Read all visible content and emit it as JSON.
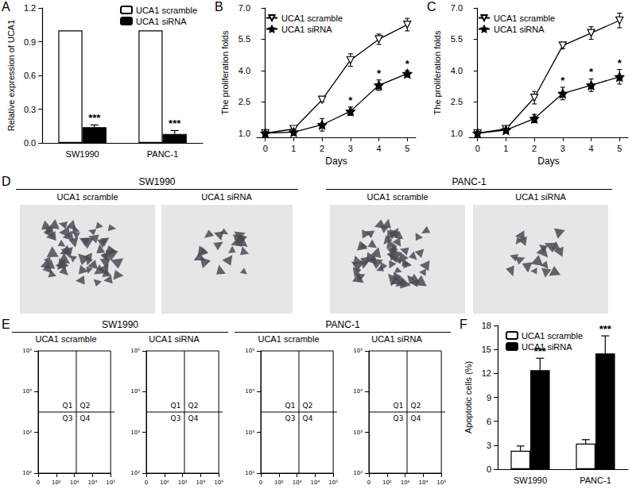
{
  "chart_data": [
    {
      "panel": "A",
      "type": "bar",
      "y_label": "Relative expression of UCA1",
      "categories": [
        "SW1990",
        "PANC-1"
      ],
      "series": [
        {
          "name": "UCA1 scramble",
          "color": "#ffffff",
          "values": [
            1,
            1
          ]
        },
        {
          "name": "UCA1 siRNA",
          "color": "#000000",
          "values": [
            0.14,
            0.08
          ],
          "errors": [
            0.02,
            0.03
          ],
          "annotations": [
            "***",
            "***"
          ]
        }
      ],
      "ylim": [
        0,
        1.2
      ],
      "yticks": [
        {
          "value": 0,
          "label": "0.0"
        },
        0.3,
        0.6,
        0.9,
        1.2
      ],
      "legend": "top-right",
      "grid": false
    },
    {
      "panel": "B",
      "type": "line",
      "x_label": "Days",
      "y_label": "The proliferation folds",
      "x": [
        0,
        1,
        2,
        3,
        4,
        5
      ],
      "series": [
        {
          "name": "UCA1 scramble",
          "color": "#000000",
          "marker": "triangle-down-open",
          "values": [
            1.0,
            1.2,
            2.6,
            4.5,
            5.5,
            6.2
          ],
          "errors": [
            0.05,
            0.1,
            0.1,
            0.3,
            0.25,
            0.3
          ]
        },
        {
          "name": "UCA1 siRNA",
          "color": "#000000",
          "marker": "star",
          "values": [
            1.0,
            1.05,
            1.4,
            2.05,
            3.3,
            3.85
          ],
          "errors": [
            0.05,
            0.15,
            0.3,
            0.2,
            0.25,
            0.15
          ],
          "annotations": [
            null,
            null,
            null,
            "*",
            "*",
            "*"
          ]
        }
      ],
      "xlim": [
        -0.3,
        5.3
      ],
      "xticks": [
        0,
        1,
        2,
        3,
        4,
        5
      ],
      "ylim": [
        0.8,
        7.0
      ],
      "yticks": [
        {
          "value": 1,
          "label": "1.0"
        },
        2.5,
        {
          "value": 4,
          "label": "4.0"
        },
        5.5,
        {
          "value": 7,
          "label": "7.0"
        }
      ],
      "legend": "top-left",
      "grid": false
    },
    {
      "panel": "C",
      "type": "line",
      "x_label": "Days",
      "y_label": "The proliferation folds",
      "x": [
        0,
        1,
        2,
        3,
        4,
        5
      ],
      "series": [
        {
          "name": "UCA1 scramble",
          "color": "#000000",
          "marker": "triangle-down-open",
          "values": [
            1.0,
            1.2,
            2.7,
            5.2,
            5.8,
            6.4
          ],
          "errors": [
            0.05,
            0.1,
            0.3,
            0.15,
            0.3,
            0.35
          ]
        },
        {
          "name": "UCA1 siRNA",
          "color": "#000000",
          "marker": "star",
          "values": [
            1.0,
            1.15,
            1.7,
            2.9,
            3.3,
            3.7
          ],
          "errors": [
            0.05,
            0.1,
            0.2,
            0.3,
            0.3,
            0.35
          ],
          "annotations": [
            null,
            null,
            null,
            "*",
            "*",
            "*"
          ]
        }
      ],
      "xlim": [
        -0.3,
        5.3
      ],
      "xticks": [
        0,
        1,
        2,
        3,
        4,
        5
      ],
      "ylim": [
        0.8,
        7.0
      ],
      "yticks": [
        {
          "value": 1,
          "label": "1.0"
        },
        2.5,
        {
          "value": 4,
          "label": "4.0"
        },
        5.5,
        {
          "value": 7,
          "label": "7.0"
        }
      ],
      "legend": "top-left",
      "grid": false
    },
    {
      "panel": "D",
      "type": "image",
      "groups": [
        {
          "title": "SW1990",
          "images": [
            "UCA1 scramble",
            "UCA1 siRNA"
          ]
        },
        {
          "title": "PANC-1",
          "images": [
            "UCA1 scramble",
            "UCA1 siRNA"
          ]
        }
      ]
    },
    {
      "panel": "E",
      "type": "flow_cytometry",
      "x_tick_labels": [
        "0",
        "10²",
        "10³",
        "10⁴",
        "10⁵"
      ],
      "y_tick_labels": [
        "10²",
        "10³",
        "10⁴",
        "10⁵"
      ],
      "quadrants": [
        "Q1",
        "Q2",
        "Q3",
        "Q4"
      ],
      "groups": [
        {
          "title": "SW1990",
          "plots": [
            "UCA1 scramble",
            "UCA1 siRNA"
          ]
        },
        {
          "title": "PANC-1",
          "plots": [
            "UCA1 scramble",
            "UCA1 siRNA"
          ]
        }
      ]
    },
    {
      "panel": "F",
      "type": "bar",
      "y_label": "Apoptotic cells (%)",
      "categories": [
        "SW1990",
        "PANC-1"
      ],
      "series": [
        {
          "name": "UCA1 scramble",
          "color": "#ffffff",
          "values": [
            2.3,
            3.2
          ],
          "errors": [
            0.6,
            0.5
          ]
        },
        {
          "name": "UCA1 siRNA",
          "color": "#000000",
          "values": [
            12.4,
            14.5
          ],
          "errors": [
            1.5,
            2.2
          ],
          "annotations": [
            "***",
            "***"
          ]
        }
      ],
      "ylim": [
        0,
        18
      ],
      "yticks": [
        0,
        3,
        6,
        9,
        12,
        15,
        18
      ],
      "legend": "top-left",
      "grid": false
    }
  ]
}
